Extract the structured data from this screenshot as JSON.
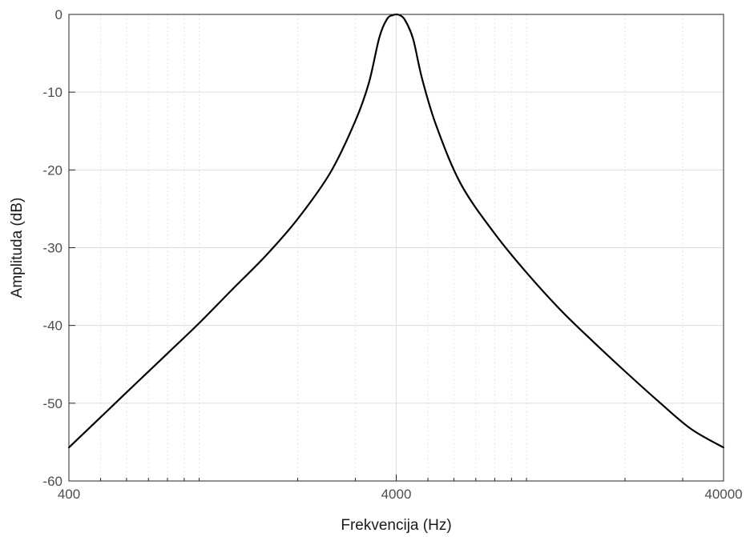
{
  "chart_data": {
    "type": "line",
    "title": "",
    "xlabel": "Frekvencija  (Hz)",
    "ylabel": "Amplituda (dB)",
    "xscale": "log",
    "xlim": [
      400,
      40000
    ],
    "ylim": [
      -60,
      0
    ],
    "xticks": [
      400,
      4000,
      40000
    ],
    "xtick_labels": [
      "400",
      "4000",
      "40000"
    ],
    "yticks": [
      0,
      -10,
      -20,
      -30,
      -40,
      -50,
      -60
    ],
    "ytick_labels": [
      "0",
      "-10",
      "-20",
      "-30",
      "-40",
      "-50",
      "-60"
    ],
    "grid": true,
    "minor_grid": true,
    "line_color": "#000000",
    "series": [
      {
        "x": [
          400,
          500,
          632,
          800,
          1000,
          1260,
          1600,
          2000,
          2520,
          3000,
          3300,
          3550,
          3750,
          3900,
          4000,
          4100,
          4250,
          4500,
          4800,
          5300,
          6300,
          8000,
          10000,
          12700,
          16000,
          20000,
          25200,
          31800,
          40000
        ],
        "y": [
          -55.7,
          -51.8,
          -47.7,
          -43.6,
          -39.7,
          -35.4,
          -31.0,
          -26.3,
          -20.3,
          -13.7,
          -8.8,
          -3.0,
          -0.6,
          -0.1,
          0.0,
          -0.1,
          -0.7,
          -3.1,
          -8.3,
          -14.3,
          -21.8,
          -28.2,
          -33.2,
          -38.0,
          -42.1,
          -45.9,
          -49.7,
          -53.3,
          -55.7
        ]
      }
    ]
  }
}
